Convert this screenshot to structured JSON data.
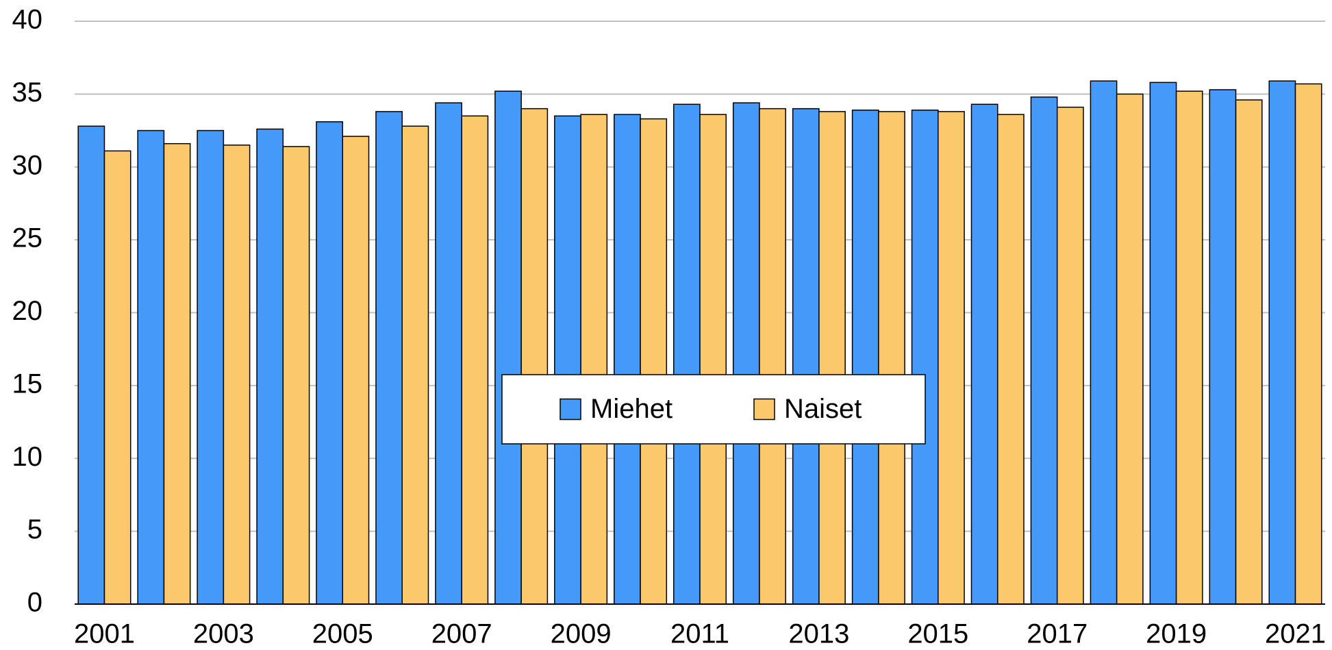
{
  "chart_data": {
    "type": "bar",
    "categories": [
      "2001",
      null,
      "2003",
      null,
      "2005",
      null,
      "2007",
      null,
      "2009",
      null,
      "2011",
      null,
      "2013",
      null,
      "2015",
      null,
      "2017",
      null,
      "2019",
      null,
      "2021"
    ],
    "series": [
      {
        "name": "Miehet",
        "color": "#4499f9",
        "values": [
          32.8,
          32.5,
          32.5,
          32.6,
          33.1,
          33.8,
          34.4,
          35.2,
          33.5,
          33.6,
          34.3,
          34.4,
          34.0,
          33.9,
          33.9,
          34.3,
          34.8,
          35.9,
          35.8,
          35.3,
          35.9
        ]
      },
      {
        "name": "Naiset",
        "color": "#fbc86c",
        "values": [
          31.1,
          31.6,
          31.5,
          31.4,
          32.1,
          32.8,
          33.5,
          34.0,
          33.6,
          33.3,
          33.6,
          34.0,
          33.8,
          33.8,
          33.8,
          33.6,
          34.1,
          35.0,
          35.2,
          34.6,
          35.7
        ]
      }
    ],
    "ylim": [
      0,
      40
    ],
    "yticks": [
      0,
      5,
      10,
      15,
      20,
      25,
      30,
      35,
      40
    ],
    "grid": true,
    "legend": "center"
  }
}
